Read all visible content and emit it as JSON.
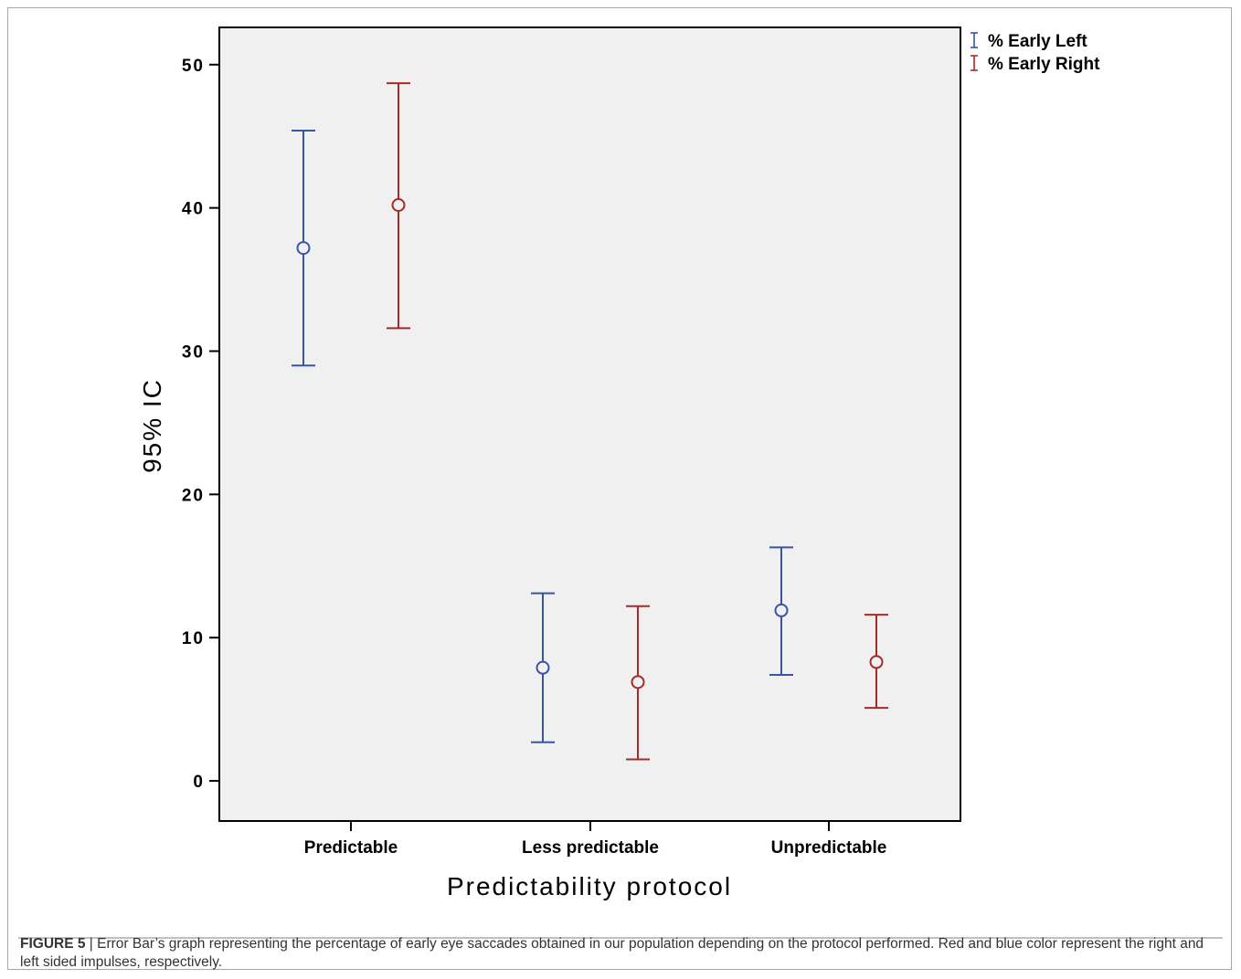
{
  "chart_data": {
    "type": "errorbar",
    "categories": [
      "Predictable",
      "Less predictable",
      "Unpredictable"
    ],
    "series": [
      {
        "name": "% Early Left",
        "color": "#3a54a4",
        "mean": [
          37.2,
          7.9,
          11.9
        ],
        "lower": [
          29.0,
          2.7,
          7.4
        ],
        "upper": [
          45.4,
          13.1,
          16.3
        ]
      },
      {
        "name": "% Early Right",
        "color": "#a52a2a",
        "mean": [
          40.2,
          6.9,
          8.3
        ],
        "lower": [
          31.6,
          1.5,
          5.1
        ],
        "upper": [
          48.7,
          12.2,
          11.6
        ]
      }
    ],
    "xlabel": "Predictability protocol",
    "ylabel": "95% IC",
    "ylim": [
      -2.8,
      52.6
    ],
    "yticks": [
      "0",
      "10",
      "20",
      "30",
      "40",
      "50"
    ],
    "grid": false,
    "legend_position": "top-right outside",
    "plot_background": "#f0f0f0"
  },
  "caption": {
    "label": "FIGURE 5",
    "text": " | Error Bar’s graph representing the percentage of early eye saccades obtained in our population depending on the protocol performed. Red and blue color represent the right and left sided impulses, respectively."
  }
}
